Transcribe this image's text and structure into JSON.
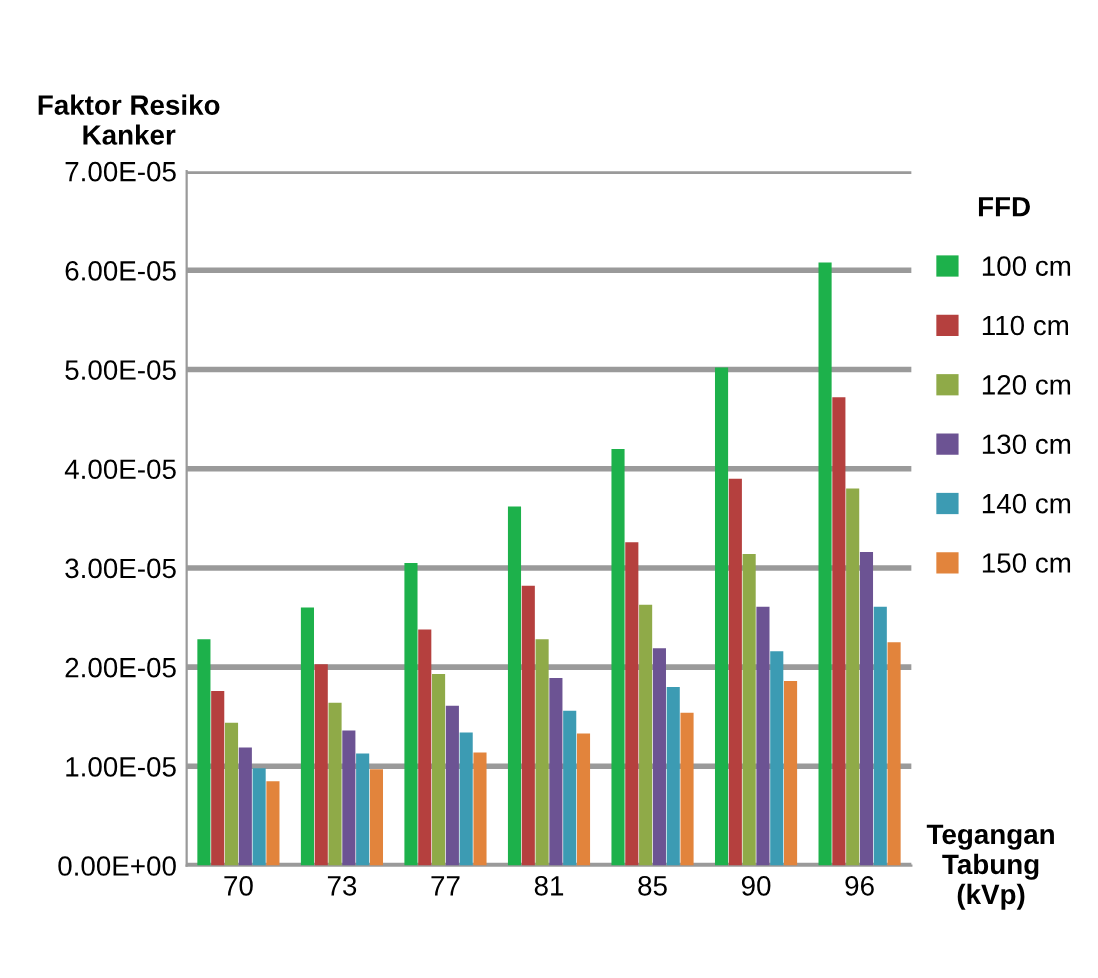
{
  "chart_data": {
    "type": "bar",
    "ylabel": "Faktor Resiko\nKanker",
    "xlabel": "Tegangan\nTabung\n(kVp)",
    "legend_title": "FFD",
    "categories": [
      "70",
      "73",
      "77",
      "81",
      "85",
      "90",
      "96"
    ],
    "series": [
      {
        "name": "100 cm",
        "color": "#1db14b",
        "values": [
          2.28e-05,
          2.6e-05,
          3.05e-05,
          3.62e-05,
          4.2e-05,
          5.02e-05,
          6.08e-05
        ]
      },
      {
        "name": "110 cm",
        "color": "#b5403e",
        "values": [
          1.76e-05,
          2.03e-05,
          2.38e-05,
          2.82e-05,
          3.26e-05,
          3.9e-05,
          4.72e-05
        ]
      },
      {
        "name": "120 cm",
        "color": "#8faa48",
        "values": [
          1.44e-05,
          1.64e-05,
          1.93e-05,
          2.28e-05,
          2.63e-05,
          3.14e-05,
          3.8e-05
        ]
      },
      {
        "name": "130 cm",
        "color": "#6c5393",
        "values": [
          1.19e-05,
          1.36e-05,
          1.61e-05,
          1.89e-05,
          2.19e-05,
          2.61e-05,
          3.16e-05
        ]
      },
      {
        "name": "140 cm",
        "color": "#3c9bb3",
        "values": [
          9.8e-06,
          1.13e-05,
          1.34e-05,
          1.56e-05,
          1.8e-05,
          2.16e-05,
          2.61e-05
        ]
      },
      {
        "name": "150 cm",
        "color": "#e2843c",
        "values": [
          8.5e-06,
          9.7e-06,
          1.14e-05,
          1.33e-05,
          1.54e-05,
          1.86e-05,
          2.25e-05
        ]
      }
    ],
    "ylim": [
      0,
      7e-05
    ],
    "yticks": [
      {
        "value": 0,
        "label": "0.00E+00"
      },
      {
        "value": 1e-05,
        "label": "1.00E-05"
      },
      {
        "value": 2e-05,
        "label": "2.00E-05"
      },
      {
        "value": 3e-05,
        "label": "3.00E-05"
      },
      {
        "value": 4e-05,
        "label": "4.00E-05"
      },
      {
        "value": 5e-05,
        "label": "5.00E-05"
      },
      {
        "value": 6e-05,
        "label": "6.00E-05"
      },
      {
        "value": 7e-05,
        "label": "7.00E-05"
      }
    ],
    "grid": "y",
    "legend": "right"
  }
}
